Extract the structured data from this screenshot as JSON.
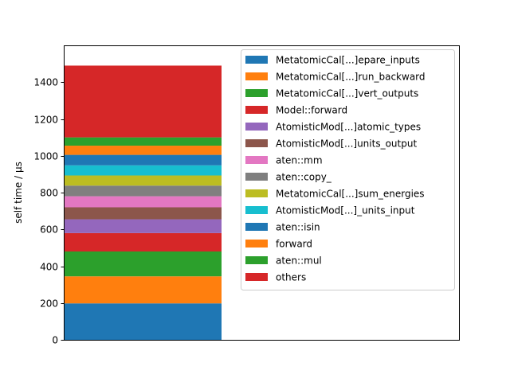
{
  "chart_data": {
    "type": "bar",
    "stacked": true,
    "ylabel": "self time / µs",
    "xlabel": "",
    "ylim": [
      0,
      1600
    ],
    "yticks": [
      0,
      200,
      400,
      600,
      800,
      1000,
      1200,
      1400
    ],
    "legend_position": "top-right",
    "grid": false,
    "series": [
      {
        "name": "MetatomicCal[...]epare_inputs",
        "value": 198,
        "color": "#1f77b4"
      },
      {
        "name": "MetatomicCal[...]run_backward",
        "value": 147,
        "color": "#ff7f0e"
      },
      {
        "name": "MetatomicCal[...]vert_outputs",
        "value": 135,
        "color": "#2ca02c"
      },
      {
        "name": "Model::forward",
        "value": 100,
        "color": "#d62728"
      },
      {
        "name": "AtomisticMod[...]atomic_types",
        "value": 75,
        "color": "#9467bd"
      },
      {
        "name": "AtomisticMod[...]units_output",
        "value": 65,
        "color": "#8c564b"
      },
      {
        "name": "aten::mm",
        "value": 60,
        "color": "#e377c2"
      },
      {
        "name": "aten::copy_",
        "value": 58,
        "color": "#7f7f7f"
      },
      {
        "name": "MetatomicCal[...]sum_energies",
        "value": 55,
        "color": "#bcbd22"
      },
      {
        "name": "AtomisticMod[...]_units_input",
        "value": 55,
        "color": "#17becf"
      },
      {
        "name": "aten::isin",
        "value": 57,
        "color": "#1f77b4"
      },
      {
        "name": "forward",
        "value": 50,
        "color": "#ff7f0e"
      },
      {
        "name": "aten::mul",
        "value": 45,
        "color": "#2ca02c"
      },
      {
        "name": "others",
        "value": 390,
        "color": "#d62728"
      }
    ]
  }
}
